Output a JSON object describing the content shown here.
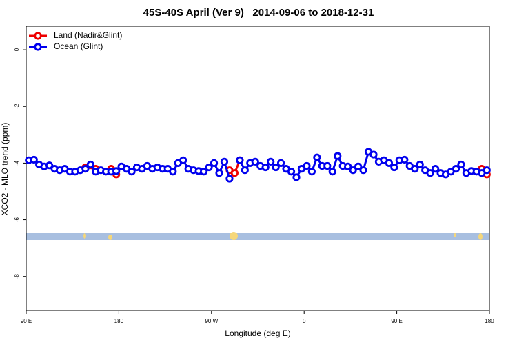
{
  "chart_data": {
    "type": "line",
    "title": "45S-40S April (Ver 9)   2014-09-06 to 2018-12-31",
    "xlabel": "Longitude (deg E)",
    "ylabel": "XCO2 - MLO trend (ppm)",
    "xlim": [
      90,
      540
    ],
    "ylim": [
      -9.2,
      0.83
    ],
    "xticks": [
      {
        "value": 90,
        "label": "90 E"
      },
      180,
      {
        "value": 270,
        "label": "90 W"
      },
      {
        "value": 360,
        "label": "0"
      },
      {
        "value": 450,
        "label": "90 E"
      },
      {
        "value": 540,
        "label": "180"
      }
    ],
    "yticks": [
      0,
      -2,
      -4,
      -6,
      -8
    ],
    "grid": false,
    "legend": "top-left",
    "series": [
      {
        "name": "Land (Nadir&Glint)",
        "color": "#ee0000",
        "x": [
          147.5,
          157.5,
          172.5,
          177.5,
          232.5,
          287.5,
          292.5,
          297.5,
          412.5,
          532.5,
          537.5
        ],
        "values": [
          -4.15,
          -4.2,
          -4.2,
          -4.4,
          null,
          -4.25,
          -4.35,
          -3.9,
          null,
          -4.2,
          -4.4
        ]
      },
      {
        "name": "Ocean (Glint)",
        "color": "#0000ee",
        "x": [
          92.5,
          97.5,
          102.5,
          107.5,
          112.5,
          117.5,
          122.5,
          127.5,
          132.5,
          137.5,
          142.5,
          147.5,
          152.5,
          157.5,
          162.5,
          167.5,
          172.5,
          177.5,
          182.5,
          187.5,
          192.5,
          197.5,
          202.5,
          207.5,
          212.5,
          217.5,
          222.5,
          227.5,
          232.5,
          237.5,
          242.5,
          247.5,
          252.5,
          257.5,
          262.5,
          267.5,
          272.5,
          277.5,
          282.5,
          287.5,
          292.5,
          297.5,
          302.5,
          307.5,
          312.5,
          317.5,
          322.5,
          327.5,
          332.5,
          337.5,
          342.5,
          347.5,
          352.5,
          357.5,
          362.5,
          367.5,
          372.5,
          377.5,
          382.5,
          387.5,
          392.5,
          397.5,
          402.5,
          407.5,
          412.5,
          417.5,
          422.5,
          427.5,
          432.5,
          437.5,
          442.5,
          447.5,
          452.5,
          457.5,
          462.5,
          467.5,
          472.5,
          477.5,
          482.5,
          487.5,
          492.5,
          497.5,
          502.5,
          507.5,
          512.5,
          517.5,
          522.5,
          527.5,
          532.5,
          537.5
        ],
        "values": [
          -3.9,
          -3.88,
          -4.05,
          -4.12,
          -4.08,
          -4.2,
          -4.25,
          -4.2,
          -4.3,
          -4.3,
          -4.25,
          -4.2,
          -4.05,
          -4.3,
          -4.25,
          -4.3,
          -4.3,
          -4.28,
          -4.12,
          -4.2,
          -4.3,
          -4.15,
          -4.2,
          -4.1,
          -4.2,
          -4.15,
          -4.2,
          -4.2,
          -4.3,
          -4.0,
          -3.9,
          -4.2,
          -4.25,
          -4.28,
          -4.3,
          -4.15,
          -4.0,
          -4.35,
          -3.95,
          -4.55,
          null,
          -3.9,
          -4.25,
          -4.0,
          -3.95,
          -4.1,
          -4.15,
          -3.95,
          -4.15,
          -4.0,
          -4.2,
          -4.3,
          -4.5,
          -4.2,
          -4.1,
          -4.3,
          -3.8,
          -4.1,
          -4.1,
          -4.3,
          -3.75,
          -4.1,
          -4.12,
          -4.25,
          -4.12,
          -4.25,
          -3.6,
          -3.7,
          -3.95,
          -3.9,
          -4.0,
          -4.15,
          -3.9,
          -3.88,
          -4.1,
          -4.2,
          -4.05,
          -4.25,
          -4.35,
          -4.2,
          -4.35,
          -4.4,
          -4.3,
          -4.2,
          -4.05,
          -4.35,
          -4.28,
          -4.3,
          -4.35,
          -4.25
        ]
      }
    ]
  }
}
